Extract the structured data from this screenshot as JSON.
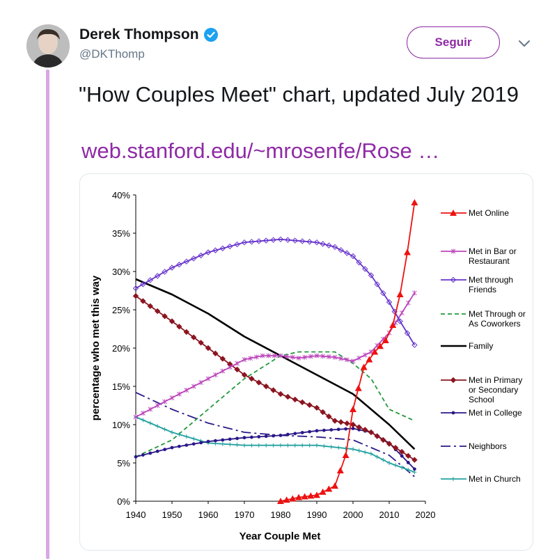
{
  "tweet": {
    "author_name": "Derek Thompson",
    "author_handle": "@DKThomp",
    "follow_label": "Seguir",
    "text": "\"How Couples Meet\" chart, updated July 2019",
    "link_text": "web.stanford.edu/~mrosenfe/Rose …"
  },
  "colors": {
    "accent": "#8e2aa5",
    "verified": "#1da1f2",
    "thread_line": "#d8a7e4"
  },
  "chart_data": {
    "type": "line",
    "xlabel": "Year Couple Met",
    "ylabel": "percentage who met this way",
    "xlim": [
      1940,
      2020
    ],
    "ylim": [
      0,
      40
    ],
    "x_ticks": [
      "1940",
      "1950",
      "1960",
      "1970",
      "1980",
      "1990",
      "2000",
      "2010",
      "2020"
    ],
    "y_ticks": [
      "0%",
      "5%",
      "10%",
      "15%",
      "20%",
      "25%",
      "30%",
      "35%",
      "40%"
    ],
    "legend_position": "right",
    "series": [
      {
        "name": "Met Online",
        "color": "#ee1111",
        "style": "solid",
        "marker": "triangle",
        "x": [
          1980,
          1985,
          1990,
          1995,
          1998,
          2000,
          2003,
          2006,
          2009,
          2011,
          2013,
          2015,
          2017
        ],
        "values": [
          0,
          0.5,
          0.8,
          2,
          6,
          12,
          17.5,
          19.5,
          21,
          23,
          27,
          32.5,
          39
        ]
      },
      {
        "name": "Met in Bar or Restaurant",
        "color": "#bb44bb",
        "style": "solid",
        "marker": "star",
        "x": [
          1940,
          1950,
          1960,
          1970,
          1975,
          1980,
          1985,
          1990,
          1995,
          2000,
          2005,
          2010,
          2017
        ],
        "values": [
          11,
          13.5,
          16,
          18.5,
          19,
          19,
          18.7,
          19,
          18.8,
          18.3,
          19.5,
          22,
          27.2
        ]
      },
      {
        "name": "Met through Friends",
        "color": "#6633cc",
        "style": "solid",
        "marker": "diamond",
        "x": [
          1940,
          1950,
          1960,
          1970,
          1980,
          1990,
          1995,
          2000,
          2005,
          2010,
          2013,
          2017
        ],
        "values": [
          27.8,
          30.5,
          32.5,
          33.8,
          34.2,
          33.8,
          33.2,
          32,
          29.5,
          26,
          23.5,
          20.4
        ]
      },
      {
        "name": "Met Through or As Coworkers",
        "color": "#22993a",
        "style": "dashed",
        "marker": "none",
        "x": [
          1940,
          1950,
          1960,
          1970,
          1980,
          1985,
          1990,
          1995,
          2000,
          2005,
          2010,
          2017
        ],
        "values": [
          5.8,
          8,
          12,
          16,
          19,
          19.5,
          19.5,
          19.5,
          18,
          16,
          12,
          10.5
        ]
      },
      {
        "name": "Family",
        "color": "#000000",
        "style": "solid",
        "marker": "none",
        "x": [
          1940,
          1950,
          1960,
          1970,
          1980,
          1990,
          2000,
          2010,
          2017
        ],
        "values": [
          29,
          27,
          24.5,
          21.5,
          19,
          16.5,
          14,
          10,
          6.8
        ]
      },
      {
        "name": "Met in Primary or Secondary School",
        "color": "#8b1520",
        "style": "solid",
        "marker": "diamond",
        "x": [
          1940,
          1950,
          1960,
          1970,
          1980,
          1990,
          1995,
          2000,
          2005,
          2010,
          2017
        ],
        "values": [
          26.8,
          23.5,
          20,
          16.5,
          14,
          12.2,
          10.5,
          10,
          9,
          7.5,
          5.4
        ]
      },
      {
        "name": "Met in College",
        "color": "#2a1888",
        "style": "solid",
        "marker": "dot",
        "x": [
          1940,
          1950,
          1960,
          1970,
          1980,
          1990,
          2000,
          2005,
          2010,
          2017
        ],
        "values": [
          5.8,
          7,
          7.8,
          8.3,
          8.6,
          9.2,
          9.5,
          9,
          7.6,
          4.2
        ]
      },
      {
        "name": "Neighbors",
        "color": "#2a1888",
        "style": "dashdot",
        "marker": "none",
        "x": [
          1940,
          1950,
          1960,
          1970,
          1980,
          1990,
          2000,
          2010,
          2017
        ],
        "values": [
          14.2,
          12,
          10.2,
          9,
          8.6,
          8.4,
          8,
          6,
          3.2
        ]
      },
      {
        "name": "Met in Church",
        "color": "#22a0a0",
        "style": "solid",
        "marker": "plus",
        "x": [
          1940,
          1950,
          1960,
          1970,
          1980,
          1990,
          2000,
          2005,
          2010,
          2017
        ],
        "values": [
          11,
          9,
          7.6,
          7.3,
          7.3,
          7.3,
          6.8,
          6.2,
          5,
          3.8
        ]
      }
    ]
  }
}
